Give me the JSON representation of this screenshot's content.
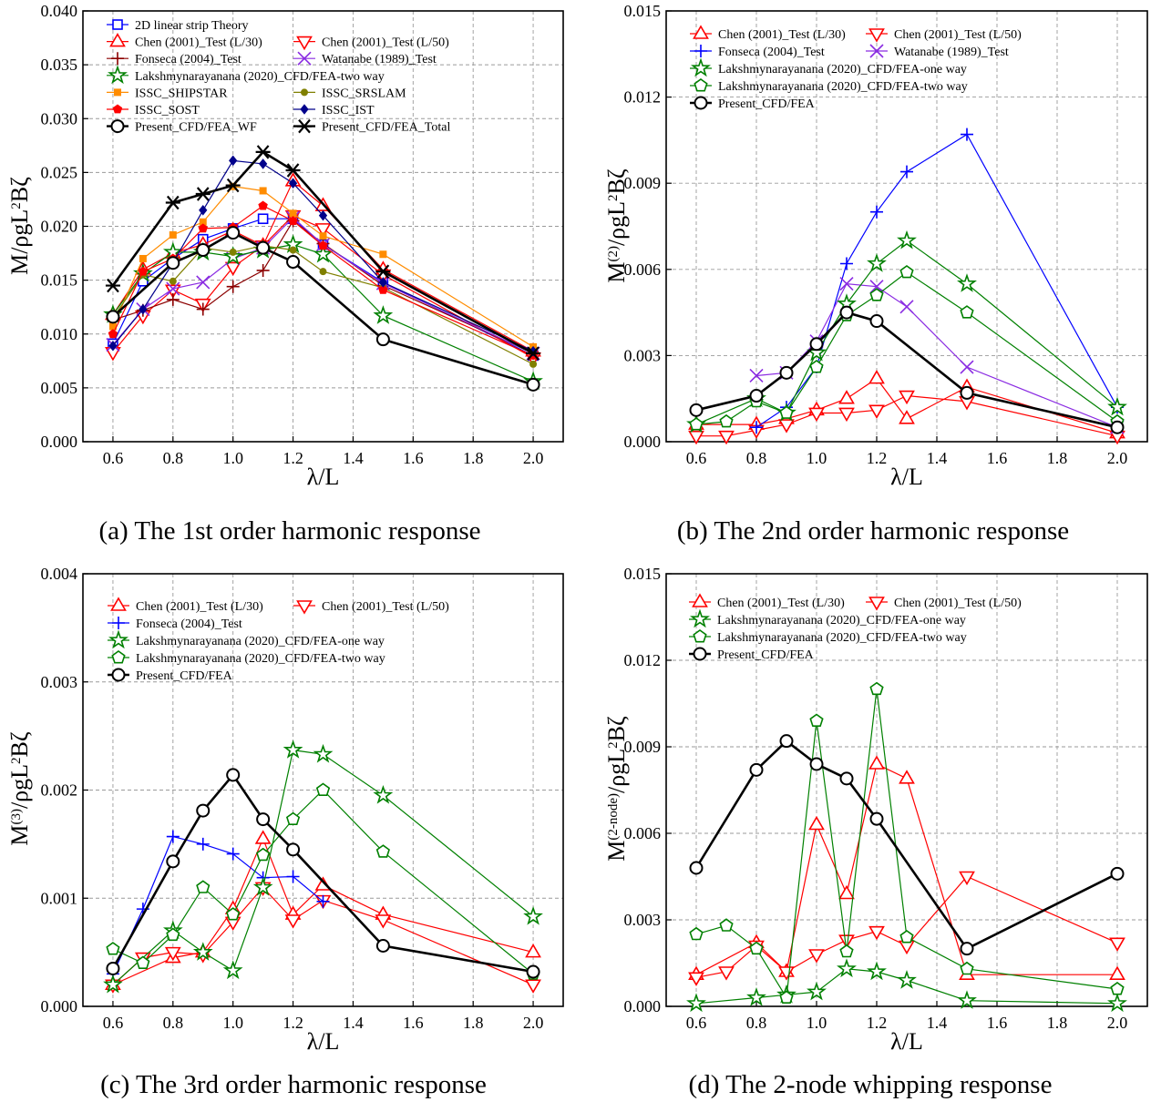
{
  "figure": {
    "colors": {
      "red": "#ff0000",
      "blue": "#0000ff",
      "purple": "#8a2be2",
      "green": "#008000",
      "brown": "#8b0000",
      "orange": "#ff8c00",
      "olive": "#808000",
      "navy": "#00008b",
      "black": "#000000"
    }
  },
  "chart_data": [
    {
      "id": "a",
      "type": "line",
      "caption": "(a) The 1st order harmonic response",
      "xlabel": "λ/L",
      "ylabel": "M/ρgL²Bζ",
      "xlim": [
        0.5,
        2.1
      ],
      "ylim": [
        0.0,
        0.04
      ],
      "xticks": [
        "0.6",
        "0.8",
        "1.0",
        "1.2",
        "1.4",
        "1.6",
        "1.8",
        "2.0"
      ],
      "yticks": [
        "0.000",
        "0.005",
        "0.010",
        "0.015",
        "0.020",
        "0.025",
        "0.030",
        "0.035",
        "0.040"
      ],
      "grid": true,
      "legend_position": "top-left, two columns",
      "series": [
        {
          "name": "2D linear strip Theory",
          "color": "blue",
          "marker": "square",
          "x": [
            0.6,
            0.7,
            0.8,
            0.9,
            1.0,
            1.1,
            1.2,
            1.3,
            1.5,
            2.0
          ],
          "y": [
            0.0091,
            0.0149,
            0.017,
            0.0188,
            0.0198,
            0.0207,
            0.0207,
            0.0183,
            0.0148,
            0.008
          ]
        },
        {
          "name": "Chen (2001)_Test (L/30)",
          "color": "red",
          "marker": "triangle-up",
          "x": [
            0.6,
            0.7,
            0.8,
            0.9,
            1.0,
            1.1,
            1.2,
            1.3,
            1.5,
            2.0
          ],
          "y": [
            0.0118,
            0.016,
            0.0175,
            0.0183,
            0.0196,
            0.0182,
            0.0242,
            0.0219,
            0.016,
            0.0084
          ]
        },
        {
          "name": "Chen (2001)_Test (L/50)",
          "color": "red",
          "marker": "triangle-down",
          "x": [
            0.6,
            0.7,
            0.8,
            0.9,
            1.0,
            1.1,
            1.2,
            1.3,
            1.5,
            2.0
          ],
          "y": [
            0.0083,
            0.0117,
            0.0141,
            0.0128,
            0.0162,
            0.0182,
            0.021,
            0.0198,
            0.0155,
            0.0078
          ]
        },
        {
          "name": "Fonseca (2004)_Test",
          "color": "brown",
          "marker": "plus",
          "x": [
            0.6,
            0.7,
            0.8,
            0.9,
            1.0,
            1.1,
            1.2,
            1.3,
            1.5,
            2.0
          ],
          "y": [
            0.0113,
            0.0122,
            0.0132,
            0.0123,
            0.0144,
            0.0159,
            0.0205,
            0.0184,
            0.0145,
            0.0082
          ]
        },
        {
          "name": "Watanabe (1989)_Test",
          "color": "purple",
          "marker": "x",
          "x": [
            0.6,
            0.7,
            0.8,
            0.9,
            1.0,
            1.1,
            1.2,
            1.3,
            1.5,
            2.0
          ],
          "y": [
            0.009,
            0.0123,
            0.0142,
            0.0148,
            0.017,
            0.018,
            0.0208,
            0.0183,
            0.0147,
            0.0082
          ]
        },
        {
          "name": "Lakshmynarayanana (2020)_CFD/FEA-two way",
          "color": "green",
          "marker": "star",
          "x": [
            0.6,
            0.7,
            0.8,
            0.9,
            1.0,
            1.1,
            1.2,
            1.3,
            1.5,
            2.0
          ],
          "y": [
            0.0118,
            0.0156,
            0.0176,
            0.0176,
            0.0172,
            0.0178,
            0.0183,
            0.0174,
            0.0117,
            0.0056
          ]
        },
        {
          "name": "ISSC_SHIPSTAR",
          "color": "orange",
          "marker": "small-square",
          "x": [
            0.6,
            0.7,
            0.8,
            0.9,
            1.0,
            1.1,
            1.2,
            1.3,
            1.5,
            2.0
          ],
          "y": [
            0.0107,
            0.017,
            0.0192,
            0.0204,
            0.0237,
            0.0233,
            0.0212,
            0.0191,
            0.0174,
            0.0088
          ]
        },
        {
          "name": "ISSC_SRSLAM",
          "color": "olive",
          "marker": "circle-dot",
          "x": [
            0.6,
            0.7,
            0.8,
            0.9,
            1.0,
            1.1,
            1.2,
            1.3,
            1.5,
            2.0
          ],
          "y": [
            0.0115,
            0.0155,
            0.0149,
            0.018,
            0.0176,
            0.0182,
            0.0178,
            0.0158,
            0.0143,
            0.0072
          ]
        },
        {
          "name": "ISSC_SOST",
          "color": "red",
          "marker": "pentagon-filled",
          "x": [
            0.6,
            0.7,
            0.8,
            0.9,
            1.0,
            1.1,
            1.2,
            1.3,
            1.5,
            2.0
          ],
          "y": [
            0.01,
            0.0158,
            0.017,
            0.0198,
            0.0199,
            0.0219,
            0.0205,
            0.0182,
            0.0141,
            0.008
          ]
        },
        {
          "name": "ISSC_IST",
          "color": "navy",
          "marker": "diamond",
          "x": [
            0.6,
            0.7,
            0.8,
            0.9,
            1.0,
            1.1,
            1.2,
            1.3,
            1.5,
            2.0
          ],
          "y": [
            0.0089,
            0.0123,
            0.0166,
            0.0215,
            0.0261,
            0.0258,
            0.024,
            0.021,
            0.0148,
            0.0084
          ]
        },
        {
          "name": "Present_CFD/FEA_WF",
          "color": "black",
          "marker": "circle",
          "bold": true,
          "x": [
            0.6,
            0.8,
            0.9,
            1.0,
            1.1,
            1.2,
            1.5,
            2.0
          ],
          "y": [
            0.0116,
            0.0166,
            0.0178,
            0.0194,
            0.018,
            0.0167,
            0.0095,
            0.0053
          ]
        },
        {
          "name": "Present_CFD/FEA_Total",
          "color": "black",
          "marker": "asterisk",
          "bold": true,
          "x": [
            0.6,
            0.8,
            0.9,
            1.0,
            1.1,
            1.2,
            1.5,
            2.0
          ],
          "y": [
            0.0145,
            0.0222,
            0.023,
            0.0238,
            0.0269,
            0.0252,
            0.0158,
            0.0082
          ]
        }
      ]
    },
    {
      "id": "b",
      "type": "line",
      "caption": "(b) The 2nd order harmonic response",
      "xlabel": "λ/L",
      "ylabel": "M⁽²⁾/ρgL²Bζ",
      "xlim": [
        0.5,
        2.1
      ],
      "ylim": [
        0.0,
        0.015
      ],
      "xticks": [
        "0.6",
        "0.8",
        "1.0",
        "1.2",
        "1.4",
        "1.6",
        "1.8",
        "2.0"
      ],
      "yticks": [
        "0.000",
        "0.003",
        "0.006",
        "0.009",
        "0.012",
        "0.015"
      ],
      "grid": true,
      "legend_position": "top-left",
      "series": [
        {
          "name": "Chen (2001)_Test (L/30)",
          "color": "red",
          "marker": "triangle-up",
          "x": [
            0.6,
            0.8,
            0.9,
            1.0,
            1.1,
            1.2,
            1.3,
            1.5,
            2.0
          ],
          "y": [
            0.0006,
            0.0006,
            0.0008,
            0.0011,
            0.0015,
            0.0022,
            0.0008,
            0.0019,
            0.0003
          ]
        },
        {
          "name": "Chen (2001)_Test (L/50)",
          "color": "red",
          "marker": "triangle-down",
          "x": [
            0.6,
            0.7,
            0.8,
            0.9,
            1.0,
            1.1,
            1.2,
            1.3,
            1.5,
            2.0
          ],
          "y": [
            0.0002,
            0.0002,
            0.0004,
            0.0006,
            0.001,
            0.001,
            0.0011,
            0.0016,
            0.0014,
            0.0002
          ]
        },
        {
          "name": "Fonseca (2004)_Test",
          "color": "blue",
          "marker": "plus",
          "x": [
            0.8,
            0.9,
            1.0,
            1.1,
            1.2,
            1.3,
            1.5,
            2.0
          ],
          "y": [
            0.0005,
            0.0012,
            0.0026,
            0.0062,
            0.008,
            0.0094,
            0.0107,
            0.0012
          ]
        },
        {
          "name": "Watanabe (1989)_Test",
          "color": "purple",
          "marker": "x",
          "x": [
            0.8,
            0.9,
            1.0,
            1.1,
            1.2,
            1.3,
            1.5,
            2.0
          ],
          "y": [
            0.0023,
            0.0024,
            0.0035,
            0.0055,
            0.0054,
            0.0047,
            0.0026,
            0.0005
          ]
        },
        {
          "name": "Lakshmynarayanana (2020)_CFD/FEA-one way",
          "color": "green",
          "marker": "star",
          "x": [
            0.6,
            0.8,
            0.9,
            1.0,
            1.1,
            1.2,
            1.3,
            1.5,
            2.0
          ],
          "y": [
            0.0006,
            0.0015,
            0.001,
            0.0031,
            0.0048,
            0.0062,
            0.007,
            0.0055,
            0.0012
          ]
        },
        {
          "name": "Lakshmynarayanana (2020)_CFD/FEA-two way",
          "color": "green",
          "marker": "pentagon",
          "x": [
            0.6,
            0.7,
            0.8,
            0.9,
            1.0,
            1.1,
            1.2,
            1.3,
            1.5,
            2.0
          ],
          "y": [
            0.0006,
            0.0007,
            0.0014,
            0.001,
            0.0026,
            0.0044,
            0.0051,
            0.0059,
            0.0045,
            0.0007
          ]
        },
        {
          "name": "Present_CFD/FEA",
          "color": "black",
          "marker": "circle",
          "bold": true,
          "x": [
            0.6,
            0.8,
            0.9,
            1.0,
            1.1,
            1.2,
            1.5,
            2.0
          ],
          "y": [
            0.0011,
            0.0016,
            0.0024,
            0.0034,
            0.0045,
            0.0042,
            0.0017,
            0.0005
          ]
        }
      ]
    },
    {
      "id": "c",
      "type": "line",
      "caption": "(c) The 3rd order harmonic response",
      "xlabel": "λ/L",
      "ylabel": "M⁽³⁾/ρgL²Bζ",
      "xlim": [
        0.5,
        2.1
      ],
      "ylim": [
        0.0,
        0.004
      ],
      "xticks": [
        "0.6",
        "0.8",
        "1.0",
        "1.2",
        "1.4",
        "1.6",
        "1.8",
        "2.0"
      ],
      "yticks": [
        "0.000",
        "0.001",
        "0.002",
        "0.003",
        "0.004"
      ],
      "grid": true,
      "legend_position": "top-left",
      "series": [
        {
          "name": "Chen (2001)_Test (L/30)",
          "color": "red",
          "marker": "triangle-up",
          "x": [
            0.6,
            0.8,
            0.9,
            1.0,
            1.1,
            1.2,
            1.3,
            1.5,
            2.0
          ],
          "y": [
            0.0002,
            0.00045,
            0.0005,
            0.0009,
            0.00155,
            0.00085,
            0.00112,
            0.00085,
            0.0005
          ]
        },
        {
          "name": "Chen (2001)_Test (L/50)",
          "color": "red",
          "marker": "triangle-down",
          "x": [
            0.6,
            0.7,
            0.8,
            0.9,
            1.0,
            1.1,
            1.2,
            1.3,
            1.5,
            2.0
          ],
          "y": [
            0.0002,
            0.00045,
            0.0005,
            0.00048,
            0.00078,
            0.0011,
            0.0008,
            0.00098,
            0.0008,
            0.0002
          ]
        },
        {
          "name": "Fonseca (2004)_Test",
          "color": "blue",
          "marker": "plus",
          "x": [
            0.6,
            0.7,
            0.8,
            0.9,
            1.0,
            1.1,
            1.2,
            1.3
          ],
          "y": [
            0.0003,
            0.0009,
            0.00157,
            0.0015,
            0.00141,
            0.00119,
            0.0012,
            0.00097
          ]
        },
        {
          "name": "Lakshmynarayanana (2020)_CFD/FEA-one way",
          "color": "green",
          "marker": "star",
          "x": [
            0.6,
            0.8,
            0.9,
            1.0,
            1.1,
            1.2,
            1.3,
            1.5,
            2.0
          ],
          "y": [
            0.0002,
            0.0007,
            0.0005,
            0.00033,
            0.0011,
            0.00237,
            0.00233,
            0.00195,
            0.00083
          ]
        },
        {
          "name": "Lakshmynarayanana (2020)_CFD/FEA-two way",
          "color": "green",
          "marker": "pentagon",
          "x": [
            0.6,
            0.7,
            0.8,
            0.9,
            1.0,
            1.1,
            1.2,
            1.3,
            1.5,
            2.0
          ],
          "y": [
            0.00053,
            0.0004,
            0.00066,
            0.0011,
            0.00085,
            0.0014,
            0.00173,
            0.002,
            0.00143,
            0.0003
          ]
        },
        {
          "name": "Present_CFD/FEA",
          "color": "black",
          "marker": "circle",
          "bold": true,
          "x": [
            0.6,
            0.8,
            0.9,
            1.0,
            1.1,
            1.2,
            1.5,
            2.0
          ],
          "y": [
            0.00035,
            0.00134,
            0.00181,
            0.00214,
            0.00173,
            0.00145,
            0.00056,
            0.00032
          ]
        }
      ]
    },
    {
      "id": "d",
      "type": "line",
      "caption": "(d) The 2-node whipping response",
      "xlabel": "λ/L",
      "ylabel": "M⁽²⁻ⁿᵒᵈᵉ⁾/ρgL²Bζ",
      "xlim": [
        0.5,
        2.1
      ],
      "ylim": [
        0.0,
        0.015
      ],
      "xticks": [
        "0.6",
        "0.8",
        "1.0",
        "1.2",
        "1.4",
        "1.6",
        "1.8",
        "2.0"
      ],
      "yticks": [
        "0.000",
        "0.003",
        "0.006",
        "0.009",
        "0.012",
        "0.015"
      ],
      "grid": true,
      "legend_position": "top-left",
      "series": [
        {
          "name": "Chen (2001)_Test (L/30)",
          "color": "red",
          "marker": "triangle-up",
          "x": [
            0.6,
            0.8,
            0.9,
            1.0,
            1.1,
            1.2,
            1.3,
            1.5,
            2.0
          ],
          "y": [
            0.0011,
            0.0022,
            0.0012,
            0.0063,
            0.0039,
            0.0084,
            0.0079,
            0.0011,
            0.0011
          ]
        },
        {
          "name": "Chen (2001)_Test (L/50)",
          "color": "red",
          "marker": "triangle-down",
          "x": [
            0.6,
            0.7,
            0.8,
            0.9,
            1.0,
            1.1,
            1.2,
            1.3,
            1.5,
            2.0
          ],
          "y": [
            0.001,
            0.0012,
            0.0021,
            0.0012,
            0.0018,
            0.0023,
            0.0026,
            0.0021,
            0.0045,
            0.0022
          ]
        },
        {
          "name": "Lakshmynarayanana (2020)_CFD/FEA-one way",
          "color": "green",
          "marker": "star",
          "x": [
            0.6,
            0.8,
            0.9,
            1.0,
            1.1,
            1.2,
            1.3,
            1.5,
            2.0
          ],
          "y": [
            0.0001,
            0.0003,
            0.0004,
            0.0005,
            0.0013,
            0.0012,
            0.0009,
            0.0002,
            0.0001
          ]
        },
        {
          "name": "Lakshmynarayanana (2020)_CFD/FEA-two way",
          "color": "green",
          "marker": "pentagon",
          "x": [
            0.6,
            0.7,
            0.8,
            0.9,
            1.0,
            1.1,
            1.2,
            1.3,
            1.5,
            2.0
          ],
          "y": [
            0.0025,
            0.0028,
            0.002,
            0.0003,
            0.0099,
            0.0019,
            0.011,
            0.0024,
            0.0013,
            0.0006
          ]
        },
        {
          "name": "Present_CFD/FEA",
          "color": "black",
          "marker": "circle",
          "bold": true,
          "x": [
            0.6,
            0.8,
            0.9,
            1.0,
            1.1,
            1.2,
            1.5,
            2.0
          ],
          "y": [
            0.0048,
            0.0082,
            0.0092,
            0.0084,
            0.0079,
            0.0065,
            0.002,
            0.0046
          ]
        }
      ]
    }
  ]
}
